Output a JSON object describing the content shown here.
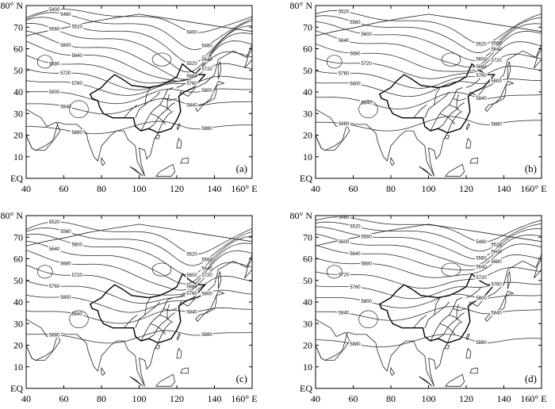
{
  "figure": {
    "panels": [
      {
        "label": "(a)",
        "contours": [
          {
            "value": "5400",
            "lat": 74.5,
            "amp": 3.0,
            "phase": 0
          },
          {
            "value": "5480",
            "lat": 71.0,
            "amp": 4.5,
            "phase": 0.3
          },
          {
            "value": "5520",
            "lat": 67.5,
            "amp": 5.5,
            "phase": 0.6
          },
          {
            "value": "5560",
            "lat": 64.0,
            "amp": 6.0,
            "phase": 0.9
          },
          {
            "value": "5600",
            "lat": 60.0,
            "amp": 6.5,
            "phase": 1.2
          },
          {
            "value": "5640",
            "lat": 56.5,
            "amp": 6.5,
            "phase": 1.5
          },
          {
            "value": "5680",
            "lat": 52.5,
            "amp": 6.0,
            "phase": 1.8
          },
          {
            "value": "5720",
            "lat": 48.5,
            "amp": 5.5,
            "phase": 2.1
          },
          {
            "value": "5760",
            "lat": 44.5,
            "amp": 4.5,
            "phase": 2.4
          },
          {
            "value": "5800",
            "lat": 40.0,
            "amp": 4.0,
            "phase": 2.7
          },
          {
            "value": "5840",
            "lat": 34.5,
            "amp": 3.5,
            "phase": 3.0
          },
          {
            "value": "5880",
            "lat": 24.0,
            "amp": 2.5,
            "phase": 3.3
          }
        ]
      },
      {
        "label": "(b)",
        "contours": [
          {
            "value": "5520",
            "lat": 72.5,
            "amp": 4.0,
            "phase": 0.5
          },
          {
            "value": "5560",
            "lat": 69.5,
            "amp": 4.5,
            "phase": 0.8
          },
          {
            "value": "5600",
            "lat": 66.0,
            "amp": 5.0,
            "phase": 1.1
          },
          {
            "value": "5640",
            "lat": 62.0,
            "amp": 5.5,
            "phase": 1.4
          },
          {
            "value": "5680",
            "lat": 57.5,
            "amp": 5.5,
            "phase": 1.7
          },
          {
            "value": "5720",
            "lat": 53.0,
            "amp": 5.0,
            "phase": 2.0
          },
          {
            "value": "5760",
            "lat": 48.5,
            "amp": 5.0,
            "phase": 2.3
          },
          {
            "value": "5800",
            "lat": 44.0,
            "amp": 4.5,
            "phase": 2.6
          },
          {
            "value": "5840",
            "lat": 37.5,
            "amp": 4.0,
            "phase": 2.9
          },
          {
            "value": "5880",
            "lat": 26.0,
            "amp": 3.0,
            "phase": 3.2
          }
        ]
      },
      {
        "label": "(c)",
        "contours": [
          {
            "value": "5520",
            "lat": 72.0,
            "amp": 4.0,
            "phase": 0.2
          },
          {
            "value": "5560",
            "lat": 68.5,
            "amp": 4.5,
            "phase": 0.5
          },
          {
            "value": "5600",
            "lat": 65.0,
            "amp": 5.0,
            "phase": 0.8
          },
          {
            "value": "5640",
            "lat": 61.0,
            "amp": 5.5,
            "phase": 1.1
          },
          {
            "value": "5680",
            "lat": 57.0,
            "amp": 6.0,
            "phase": 1.4
          },
          {
            "value": "5720",
            "lat": 52.0,
            "amp": 6.0,
            "phase": 1.7
          },
          {
            "value": "5760",
            "lat": 47.0,
            "amp": 5.5,
            "phase": 2.0
          },
          {
            "value": "5800",
            "lat": 42.0,
            "amp": 5.0,
            "phase": 2.3
          },
          {
            "value": "5840",
            "lat": 35.5,
            "amp": 4.0,
            "phase": 2.6
          },
          {
            "value": "5880",
            "lat": 25.0,
            "amp": 3.0,
            "phase": 2.9
          }
        ]
      },
      {
        "label": "(d)",
        "contours": [
          {
            "value": "5480",
            "lat": 75.5,
            "amp": 3.0,
            "phase": 0.4
          },
          {
            "value": "5520",
            "lat": 72.5,
            "amp": 3.5,
            "phase": 0.7
          },
          {
            "value": "5560",
            "lat": 69.5,
            "amp": 4.0,
            "phase": 1.0
          },
          {
            "value": "5600",
            "lat": 66.0,
            "amp": 4.5,
            "phase": 1.3
          },
          {
            "value": "5640",
            "lat": 62.0,
            "amp": 4.5,
            "phase": 1.6
          },
          {
            "value": "5680",
            "lat": 57.5,
            "amp": 4.5,
            "phase": 1.9
          },
          {
            "value": "5720",
            "lat": 52.5,
            "amp": 4.5,
            "phase": 2.2
          },
          {
            "value": "5760",
            "lat": 47.0,
            "amp": 4.0,
            "phase": 2.5
          },
          {
            "value": "5800",
            "lat": 42.0,
            "amp": 3.5,
            "phase": 2.8
          },
          {
            "value": "5840",
            "lat": 35.5,
            "amp": 3.0,
            "phase": 3.1
          },
          {
            "value": "5880",
            "lat": 22.5,
            "amp": 2.5,
            "phase": 3.4
          }
        ]
      }
    ],
    "lat_ticks": [
      "80° N",
      "70",
      "60",
      "50",
      "40",
      "30",
      "20",
      "10",
      "EQ"
    ],
    "lon_ticks": [
      "40",
      "60",
      "80",
      "100",
      "120",
      "140",
      "160° E"
    ],
    "lon_range": [
      40,
      160
    ],
    "lat_range": [
      0,
      80
    ],
    "line_color": "#222222"
  }
}
